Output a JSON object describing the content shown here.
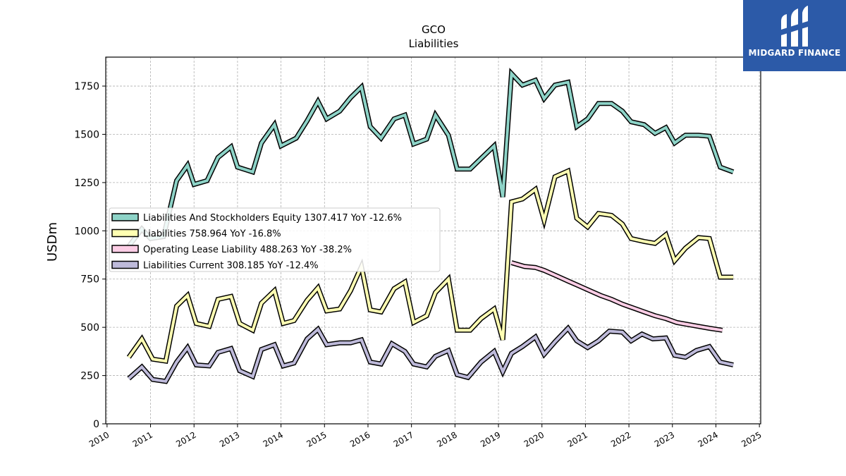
{
  "brand": {
    "name": "MIDGARD FINANCE",
    "bg": "#2c5aa8"
  },
  "chart_data": {
    "type": "line",
    "title": "GCO",
    "subtitle": "Liabilities",
    "ylabel": "USDm",
    "xlabel": "",
    "ylim": [
      0,
      1900
    ],
    "xlim": [
      2009.97,
      2025.03
    ],
    "yticks": [
      0,
      250,
      500,
      750,
      1000,
      1250,
      1500,
      1750
    ],
    "xticks": [
      2010,
      2011,
      2012,
      2013,
      2014,
      2015,
      2016,
      2017,
      2018,
      2019,
      2020,
      2021,
      2022,
      2023,
      2024,
      2025
    ],
    "grid": true,
    "legend_position": "center-left",
    "series": [
      {
        "name": "Liabilities And Stockholders Equity",
        "legend": "Liabilities And Stockholders Equity  1307.417 YoY -12.6%",
        "color": "#8dd3c7",
        "points": [
          [
            2010.5,
            920
          ],
          [
            2010.8,
            1010
          ],
          [
            2011.0,
            960
          ],
          [
            2011.3,
            970
          ],
          [
            2011.6,
            1260
          ],
          [
            2011.85,
            1340
          ],
          [
            2012.0,
            1240
          ],
          [
            2012.3,
            1260
          ],
          [
            2012.55,
            1380
          ],
          [
            2012.85,
            1435
          ],
          [
            2013.0,
            1330
          ],
          [
            2013.35,
            1305
          ],
          [
            2013.55,
            1455
          ],
          [
            2013.85,
            1550
          ],
          [
            2014.0,
            1440
          ],
          [
            2014.35,
            1480
          ],
          [
            2014.6,
            1570
          ],
          [
            2014.85,
            1670
          ],
          [
            2015.05,
            1580
          ],
          [
            2015.35,
            1620
          ],
          [
            2015.6,
            1690
          ],
          [
            2015.85,
            1745
          ],
          [
            2016.05,
            1540
          ],
          [
            2016.3,
            1480
          ],
          [
            2016.6,
            1580
          ],
          [
            2016.85,
            1600
          ],
          [
            2017.05,
            1450
          ],
          [
            2017.35,
            1475
          ],
          [
            2017.55,
            1600
          ],
          [
            2017.85,
            1495
          ],
          [
            2018.05,
            1320
          ],
          [
            2018.35,
            1320
          ],
          [
            2018.6,
            1375
          ],
          [
            2018.9,
            1440
          ],
          [
            2019.1,
            1175
          ],
          [
            2019.3,
            1815
          ],
          [
            2019.55,
            1755
          ],
          [
            2019.85,
            1780
          ],
          [
            2020.05,
            1685
          ],
          [
            2020.3,
            1755
          ],
          [
            2020.6,
            1770
          ],
          [
            2020.8,
            1540
          ],
          [
            2021.05,
            1580
          ],
          [
            2021.3,
            1660
          ],
          [
            2021.6,
            1660
          ],
          [
            2021.85,
            1620
          ],
          [
            2022.05,
            1565
          ],
          [
            2022.35,
            1550
          ],
          [
            2022.6,
            1505
          ],
          [
            2022.85,
            1535
          ],
          [
            2023.05,
            1455
          ],
          [
            2023.3,
            1495
          ],
          [
            2023.6,
            1495
          ],
          [
            2023.85,
            1490
          ],
          [
            2024.1,
            1330
          ],
          [
            2024.4,
            1305
          ]
        ]
      },
      {
        "name": "Liabilities",
        "legend": "Liabilities  758.964 YoY -16.8%",
        "color": "#ffffb3",
        "points": [
          [
            2010.5,
            345
          ],
          [
            2010.8,
            440
          ],
          [
            2011.05,
            335
          ],
          [
            2011.35,
            325
          ],
          [
            2011.6,
            610
          ],
          [
            2011.85,
            665
          ],
          [
            2012.05,
            520
          ],
          [
            2012.35,
            505
          ],
          [
            2012.55,
            645
          ],
          [
            2012.85,
            660
          ],
          [
            2013.05,
            520
          ],
          [
            2013.35,
            485
          ],
          [
            2013.55,
            625
          ],
          [
            2013.85,
            690
          ],
          [
            2014.05,
            520
          ],
          [
            2014.3,
            535
          ],
          [
            2014.6,
            640
          ],
          [
            2014.85,
            705
          ],
          [
            2015.05,
            585
          ],
          [
            2015.35,
            595
          ],
          [
            2015.6,
            690
          ],
          [
            2015.85,
            815
          ],
          [
            2016.05,
            590
          ],
          [
            2016.3,
            580
          ],
          [
            2016.6,
            700
          ],
          [
            2016.85,
            735
          ],
          [
            2017.05,
            525
          ],
          [
            2017.35,
            560
          ],
          [
            2017.55,
            680
          ],
          [
            2017.85,
            750
          ],
          [
            2018.05,
            485
          ],
          [
            2018.35,
            485
          ],
          [
            2018.6,
            545
          ],
          [
            2018.9,
            595
          ],
          [
            2019.1,
            435
          ],
          [
            2019.3,
            1150
          ],
          [
            2019.55,
            1165
          ],
          [
            2019.85,
            1215
          ],
          [
            2020.05,
            1055
          ],
          [
            2020.3,
            1280
          ],
          [
            2020.6,
            1310
          ],
          [
            2020.8,
            1065
          ],
          [
            2021.05,
            1020
          ],
          [
            2021.3,
            1090
          ],
          [
            2021.6,
            1080
          ],
          [
            2021.85,
            1035
          ],
          [
            2022.05,
            960
          ],
          [
            2022.35,
            945
          ],
          [
            2022.6,
            935
          ],
          [
            2022.85,
            980
          ],
          [
            2023.05,
            845
          ],
          [
            2023.3,
            910
          ],
          [
            2023.6,
            965
          ],
          [
            2023.85,
            960
          ],
          [
            2024.1,
            760
          ],
          [
            2024.4,
            760
          ]
        ]
      },
      {
        "name": "Operating Lease Liability",
        "legend": "Operating Lease Liability  488.263 YoY -38.2%",
        "color": "#fccde5",
        "points": [
          [
            2019.3,
            835
          ],
          [
            2019.6,
            815
          ],
          [
            2019.85,
            810
          ],
          [
            2020.05,
            795
          ],
          [
            2020.35,
            765
          ],
          [
            2020.6,
            740
          ],
          [
            2020.85,
            715
          ],
          [
            2021.1,
            690
          ],
          [
            2021.35,
            665
          ],
          [
            2021.6,
            645
          ],
          [
            2021.85,
            620
          ],
          [
            2022.1,
            600
          ],
          [
            2022.35,
            580
          ],
          [
            2022.6,
            560
          ],
          [
            2022.85,
            545
          ],
          [
            2023.1,
            525
          ],
          [
            2023.35,
            515
          ],
          [
            2023.6,
            505
          ],
          [
            2023.85,
            495
          ],
          [
            2024.15,
            485
          ]
        ]
      },
      {
        "name": "Liabilities Current",
        "legend": "Liabilities Current  308.185 YoY -12.4%",
        "color": "#bebada",
        "points": [
          [
            2010.5,
            235
          ],
          [
            2010.8,
            295
          ],
          [
            2011.05,
            230
          ],
          [
            2011.35,
            220
          ],
          [
            2011.6,
            320
          ],
          [
            2011.85,
            395
          ],
          [
            2012.05,
            305
          ],
          [
            2012.35,
            300
          ],
          [
            2012.55,
            370
          ],
          [
            2012.85,
            390
          ],
          [
            2013.05,
            275
          ],
          [
            2013.35,
            245
          ],
          [
            2013.55,
            385
          ],
          [
            2013.85,
            410
          ],
          [
            2014.05,
            300
          ],
          [
            2014.3,
            315
          ],
          [
            2014.6,
            440
          ],
          [
            2014.85,
            490
          ],
          [
            2015.05,
            410
          ],
          [
            2015.35,
            420
          ],
          [
            2015.6,
            420
          ],
          [
            2015.85,
            435
          ],
          [
            2016.05,
            320
          ],
          [
            2016.3,
            310
          ],
          [
            2016.55,
            415
          ],
          [
            2016.85,
            375
          ],
          [
            2017.05,
            310
          ],
          [
            2017.35,
            295
          ],
          [
            2017.55,
            350
          ],
          [
            2017.85,
            380
          ],
          [
            2018.05,
            255
          ],
          [
            2018.3,
            240
          ],
          [
            2018.6,
            320
          ],
          [
            2018.9,
            375
          ],
          [
            2019.1,
            270
          ],
          [
            2019.3,
            365
          ],
          [
            2019.55,
            400
          ],
          [
            2019.85,
            450
          ],
          [
            2020.05,
            360
          ],
          [
            2020.3,
            425
          ],
          [
            2020.6,
            495
          ],
          [
            2020.8,
            430
          ],
          [
            2021.05,
            395
          ],
          [
            2021.3,
            430
          ],
          [
            2021.55,
            480
          ],
          [
            2021.85,
            475
          ],
          [
            2022.05,
            430
          ],
          [
            2022.3,
            465
          ],
          [
            2022.55,
            440
          ],
          [
            2022.85,
            445
          ],
          [
            2023.05,
            355
          ],
          [
            2023.3,
            345
          ],
          [
            2023.55,
            380
          ],
          [
            2023.85,
            400
          ],
          [
            2024.1,
            320
          ],
          [
            2024.4,
            305
          ]
        ]
      }
    ]
  }
}
